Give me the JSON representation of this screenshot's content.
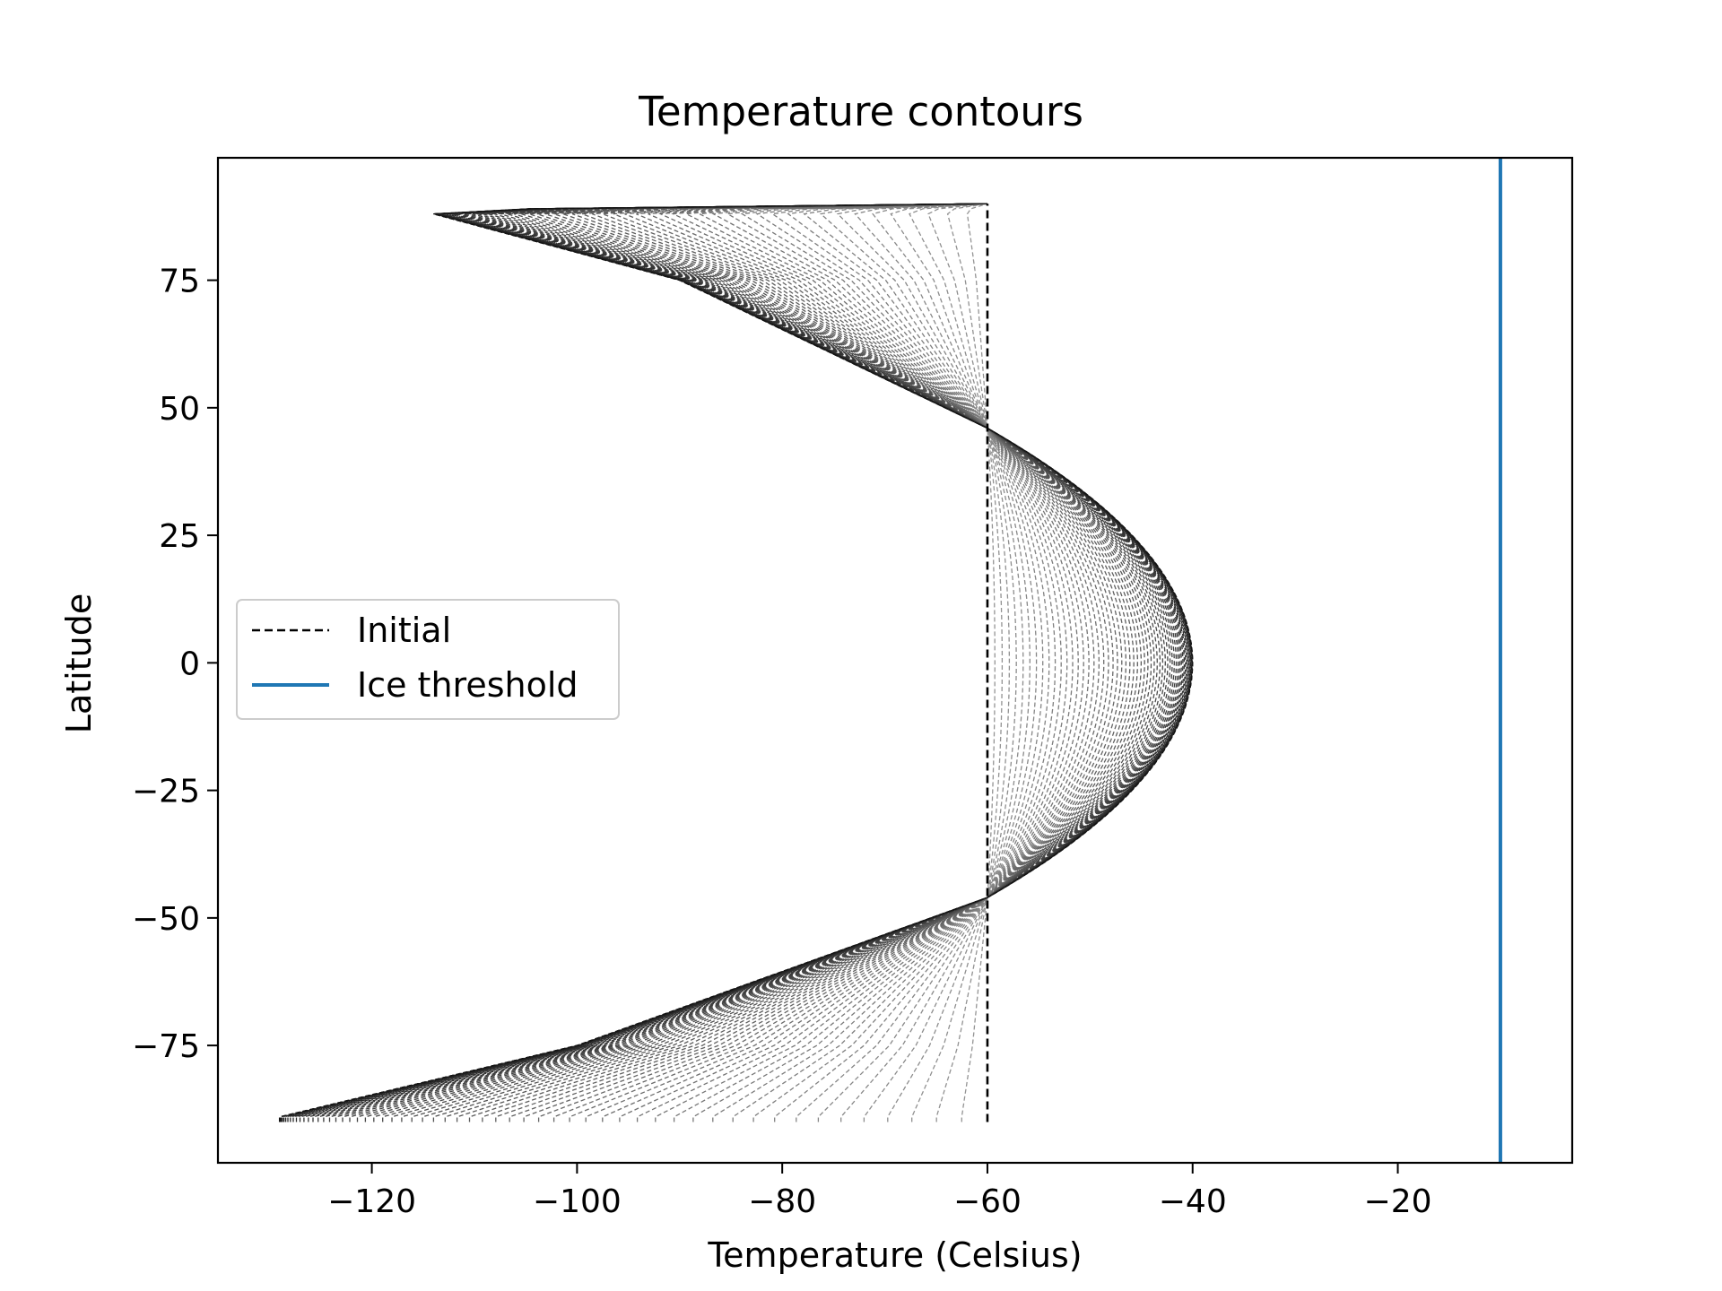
{
  "chart_data": {
    "type": "line",
    "title": "Temperature contours",
    "xlabel": "Temperature (Celsius)",
    "ylabel": "Latitude",
    "xlim": [
      -135,
      -3
    ],
    "ylim": [
      -98,
      99
    ],
    "xticks": [
      -120,
      -100,
      -80,
      -60,
      -40,
      -20
    ],
    "xtick_labels": [
      "−120",
      "−100",
      "−80",
      "−60",
      "−40",
      "−20"
    ],
    "yticks": [
      -75,
      -50,
      -25,
      0,
      25,
      50,
      75
    ],
    "ytick_labels": [
      "−75",
      "−50",
      "−25",
      "0",
      "25",
      "50",
      "75"
    ],
    "grid": false,
    "legend": {
      "position": "center-left",
      "entries": [
        {
          "label": "Initial",
          "style": "dashed",
          "color": "#000000"
        },
        {
          "label": "Ice threshold",
          "style": "solid",
          "color": "#1f77b4"
        }
      ]
    },
    "series": [
      {
        "name": "Initial",
        "style": "dashed",
        "color": "#000000",
        "x": [
          -60,
          -60
        ],
        "y": [
          -90,
          90
        ]
      },
      {
        "name": "Ice threshold",
        "style": "solid",
        "color": "#1f77b4",
        "x": [
          -10,
          -10
        ],
        "y": [
          -98,
          99
        ]
      }
    ],
    "contours": {
      "style": "dashed",
      "color": "#808080",
      "count": 60,
      "lat_range": [
        -90,
        90
      ],
      "initial_temperature": -60,
      "final_profile": [
        {
          "lat": -89,
          "temp": -129
        },
        {
          "lat": -75,
          "temp": -100
        },
        {
          "lat": -46,
          "temp": -60
        },
        {
          "lat": 0,
          "temp": -40
        },
        {
          "lat": 46,
          "temp": -60
        },
        {
          "lat": 75,
          "temp": -90
        },
        {
          "lat": 88,
          "temp": -114
        },
        {
          "lat": 89.5,
          "temp": -100
        },
        {
          "lat": 90,
          "temp": -60
        }
      ]
    }
  }
}
